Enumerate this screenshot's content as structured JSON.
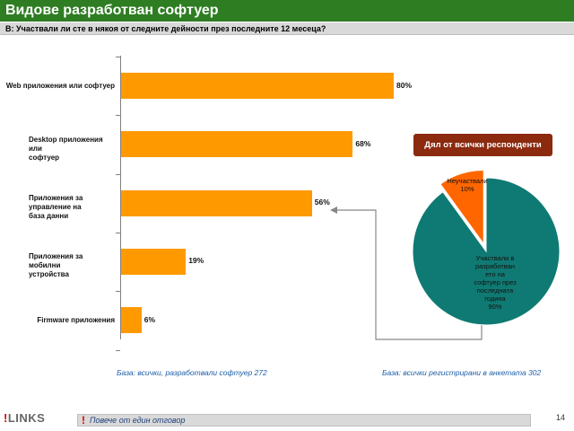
{
  "header": {
    "title": "Видове разработван софтуер",
    "question": "В: Участвали ли сте в някоя от следните дейности през последните 12 месеца?"
  },
  "chart_data": [
    {
      "type": "bar",
      "orientation": "horizontal",
      "categories": [
        "Web приложения или софтуер",
        "Desktop приложения или софтуер",
        "Приложения за управление на база данни",
        "Приложения за мобилни устройства",
        "Firmware приложения"
      ],
      "category_lines": [
        [
          "Web приложения или софтуер"
        ],
        [
          "Desktop приложения или",
          "софтуер"
        ],
        [
          "Приложения за управление на",
          "база данни"
        ],
        [
          "Приложения за мобилни",
          "устройства"
        ],
        [
          "Firmware приложения"
        ]
      ],
      "values": [
        80,
        68,
        56,
        19,
        6
      ],
      "value_labels": [
        "80%",
        "68%",
        "56%",
        "19%",
        "6%"
      ],
      "unit": "%",
      "xlim": [
        0,
        100
      ],
      "color": "#ff9900",
      "grid": false
    },
    {
      "type": "pie",
      "title": "Дял от всички респонденти",
      "slices": [
        {
          "label_lines": [
            "Участвали в",
            "разработван",
            "ето на",
            "софтуер през",
            "последната",
            "година",
            "90%"
          ],
          "value": 90,
          "color": "#0f7a73"
        },
        {
          "label_lines": [
            "Неучаствали",
            "10%"
          ],
          "value": 10,
          "color": "#ff6600"
        }
      ],
      "exploded_slice": 1
    }
  ],
  "notes": {
    "bar_base": "База: всички, разработвали софтуер 272",
    "pie_base": "База: всички регистрирани в анкетата 302"
  },
  "footer": {
    "icon": "!",
    "icon_name": "exclamation-icon",
    "text": "Повече от един отговор",
    "logo_mark": "!",
    "logo_text": "LINKS",
    "page_number": "14"
  },
  "colors": {
    "title_bg": "#2e7d22",
    "pie_title_bg": "#8b2a0f",
    "bar": "#ff9900",
    "pie_main": "#0f7a73",
    "pie_minor": "#ff6600",
    "note_text": "#1f5fa8"
  }
}
